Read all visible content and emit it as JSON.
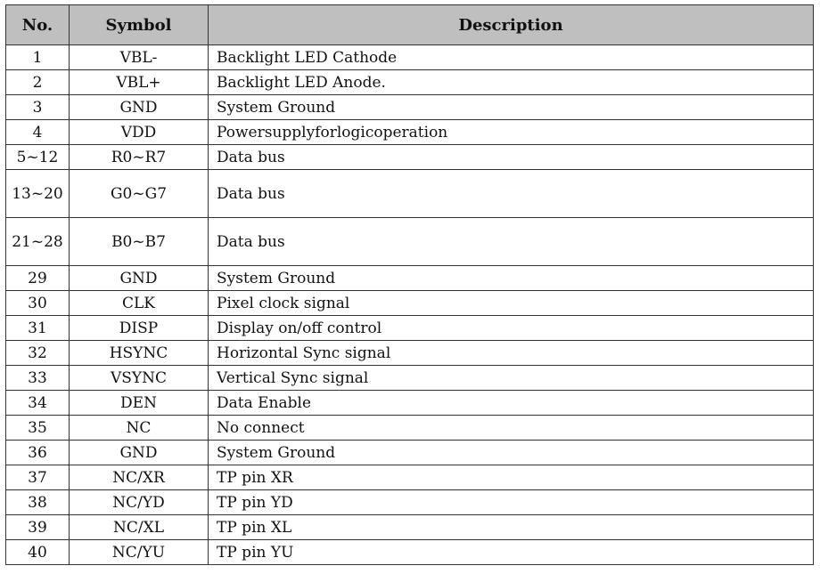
{
  "table": {
    "headers": [
      "No.",
      "Symbol",
      "Description"
    ],
    "rows": [
      {
        "no": "1",
        "symbol": "VBL-",
        "desc": "Backlight LED Cathode"
      },
      {
        "no": "2",
        "symbol": "VBL+",
        "desc": "Backlight LED Anode."
      },
      {
        "no": "3",
        "symbol": "GND",
        "desc": "System Ground"
      },
      {
        "no": "4",
        "symbol": "VDD",
        "desc": "Powersupplyforlogicoperation"
      },
      {
        "no": "5~12",
        "symbol": "R0~R7",
        "desc": "Data bus"
      },
      {
        "no": "13~20",
        "symbol": "G0~G7",
        "desc": "Data bus",
        "tall": true
      },
      {
        "no": "21~28",
        "symbol": "B0~B7",
        "desc": "Data bus",
        "tall": true
      },
      {
        "no": "29",
        "symbol": "GND",
        "desc": "System Ground"
      },
      {
        "no": "30",
        "symbol": "CLK",
        "desc": "Pixel clock signal"
      },
      {
        "no": "31",
        "symbol": "DISP",
        "desc": "Display on/off control"
      },
      {
        "no": "32",
        "symbol": "HSYNC",
        "desc": "Horizontal Sync signal"
      },
      {
        "no": "33",
        "symbol": "VSYNC",
        "desc": "Vertical Sync signal"
      },
      {
        "no": "34",
        "symbol": "DEN",
        "desc": "Data Enable"
      },
      {
        "no": "35",
        "symbol": "NC",
        "desc": "No connect"
      },
      {
        "no": "36",
        "symbol": "GND",
        "desc": "System Ground"
      },
      {
        "no": "37",
        "symbol": "NC/XR",
        "desc": "TP pin XR"
      },
      {
        "no": "38",
        "symbol": "NC/YD",
        "desc": "TP pin YD"
      },
      {
        "no": "39",
        "symbol": "NC/XL",
        "desc": "TP pin XL"
      },
      {
        "no": "40",
        "symbol": "NC/YU",
        "desc": "TP pin YU"
      }
    ]
  },
  "colors": {
    "header_bg": "#bfbfbf",
    "border": "#333333"
  }
}
